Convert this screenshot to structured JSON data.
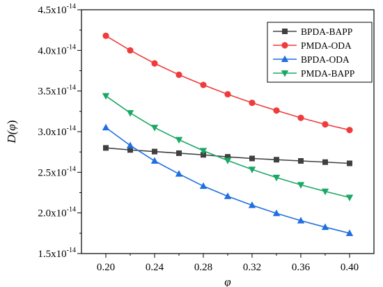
{
  "chart_data": {
    "type": "line",
    "title": "",
    "xlabel": "φ",
    "ylabel": "D(φ)",
    "ylabel_prefix": "D(",
    "ylabel_var": "φ",
    "ylabel_suffix": ")",
    "xlim": [
      0.18,
      0.42
    ],
    "ylim": [
      1.5e-14,
      4.5e-14
    ],
    "x_ticks": [
      0.2,
      0.24,
      0.28,
      0.32,
      0.36,
      0.4
    ],
    "x_tick_labels": [
      "0.20",
      "0.24",
      "0.28",
      "0.32",
      "0.36",
      "0.40"
    ],
    "y_ticks": [
      1.5e-14,
      2e-14,
      2.5e-14,
      3e-14,
      3.5e-14,
      4e-14,
      4.5e-14
    ],
    "y_tick_mantissas": [
      "1.5",
      "2.0",
      "2.5",
      "3.0",
      "3.5",
      "4.0",
      "4.5"
    ],
    "y_tick_base": "x10",
    "y_tick_exponent": "-14",
    "legend_position": "top-right",
    "grid": false,
    "x": [
      0.2,
      0.22,
      0.24,
      0.26,
      0.28,
      0.3,
      0.32,
      0.34,
      0.36,
      0.38,
      0.4
    ],
    "series": [
      {
        "name": "BPDA-BAPP",
        "color": "#404040",
        "marker": "square",
        "values": [
          2.8e-14,
          2.775e-14,
          2.755e-14,
          2.735e-14,
          2.715e-14,
          2.69e-14,
          2.67e-14,
          2.655e-14,
          2.64e-14,
          2.625e-14,
          2.61e-14
        ]
      },
      {
        "name": "PMDA-ODA",
        "color": "#ef3b3b",
        "marker": "circle",
        "values": [
          4.18e-14,
          4e-14,
          3.84e-14,
          3.7e-14,
          3.575e-14,
          3.46e-14,
          3.355e-14,
          3.26e-14,
          3.17e-14,
          3.09e-14,
          3.02e-14
        ]
      },
      {
        "name": "BPDA-ODA",
        "color": "#1f6fe0",
        "marker": "triangle-up",
        "values": [
          3.05e-14,
          2.83e-14,
          2.64e-14,
          2.48e-14,
          2.33e-14,
          2.205e-14,
          2.095e-14,
          1.995e-14,
          1.905e-14,
          1.825e-14,
          1.75e-14
        ]
      },
      {
        "name": "PMDA-BAPP",
        "color": "#1aa865",
        "marker": "triangle-down",
        "values": [
          3.44e-14,
          3.23e-14,
          3.05e-14,
          2.9e-14,
          2.765e-14,
          2.645e-14,
          2.535e-14,
          2.435e-14,
          2.345e-14,
          2.265e-14,
          2.19e-14
        ]
      }
    ]
  }
}
